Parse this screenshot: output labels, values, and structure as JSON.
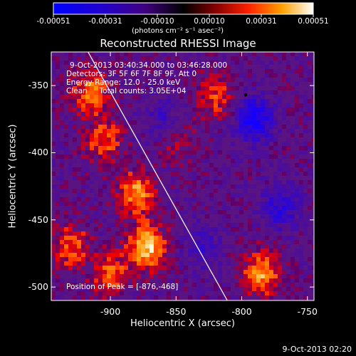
{
  "chart_data": {
    "type": "heatmap",
    "title": "Reconstructed RHESSI Image",
    "xlabel": "Heliocentric X (arcsec)",
    "ylabel": "Heliocentric Y (arcsec)",
    "xlim": [
      -945,
      -745
    ],
    "ylim": [
      -510,
      -325
    ],
    "xticks": [
      -900,
      -850,
      -800,
      -750
    ],
    "yticks": [
      -350,
      -400,
      -450,
      -500
    ],
    "xtick_labels": [
      "-900",
      "-850",
      "-800",
      "-750"
    ],
    "ytick_labels": [
      "-350",
      "-400",
      "-450",
      "-500"
    ],
    "colorbar": {
      "tick_labels": [
        "-0.00051",
        "-0.00031",
        "-0.00010",
        "0.00010",
        "0.00031",
        "0.00051"
      ],
      "units_label": "(photons cm⁻² s⁻¹ asec⁻²)",
      "range": [
        -0.00051,
        0.00051
      ]
    },
    "annotations": {
      "time_range": "9-Oct-2013 03:40:34.000 to 03:46:28.000",
      "detectors": "Detectors: 3F 5F 6F 7F 8F 9F, Att 0",
      "energy": "Energy Range: 12.0 - 25.0 keV",
      "clean": "Clean     Total counts: 3.05E+04",
      "peak": "Position of Peak = [-876,-468]"
    },
    "peak_position": [
      -876,
      -468
    ],
    "limb_line": [
      [
        -917,
        -325
      ],
      [
        -811,
        -510
      ]
    ],
    "features": [
      {
        "x": -915,
        "y": -355,
        "v": 0.00035
      },
      {
        "x": -905,
        "y": -390,
        "v": 0.0003
      },
      {
        "x": -880,
        "y": -430,
        "v": 0.0004
      },
      {
        "x": -872,
        "y": -470,
        "v": 0.00051
      },
      {
        "x": -930,
        "y": -470,
        "v": 0.0003
      },
      {
        "x": -900,
        "y": -490,
        "v": 0.0003
      },
      {
        "x": -785,
        "y": -490,
        "v": 0.0004
      },
      {
        "x": -820,
        "y": -358,
        "v": 0.00025
      },
      {
        "x": -850,
        "y": -390,
        "v": 0.00015
      },
      {
        "x": -790,
        "y": -375,
        "v": -0.00045
      },
      {
        "x": -770,
        "y": -440,
        "v": -0.0003
      },
      {
        "x": -830,
        "y": -470,
        "v": -0.0002
      },
      {
        "x": -860,
        "y": -375,
        "v": -0.0002
      }
    ],
    "min_marker": [
      -797,
      -357
    ]
  },
  "footer": {
    "timestamp": "9-Oct-2013 02:20"
  }
}
